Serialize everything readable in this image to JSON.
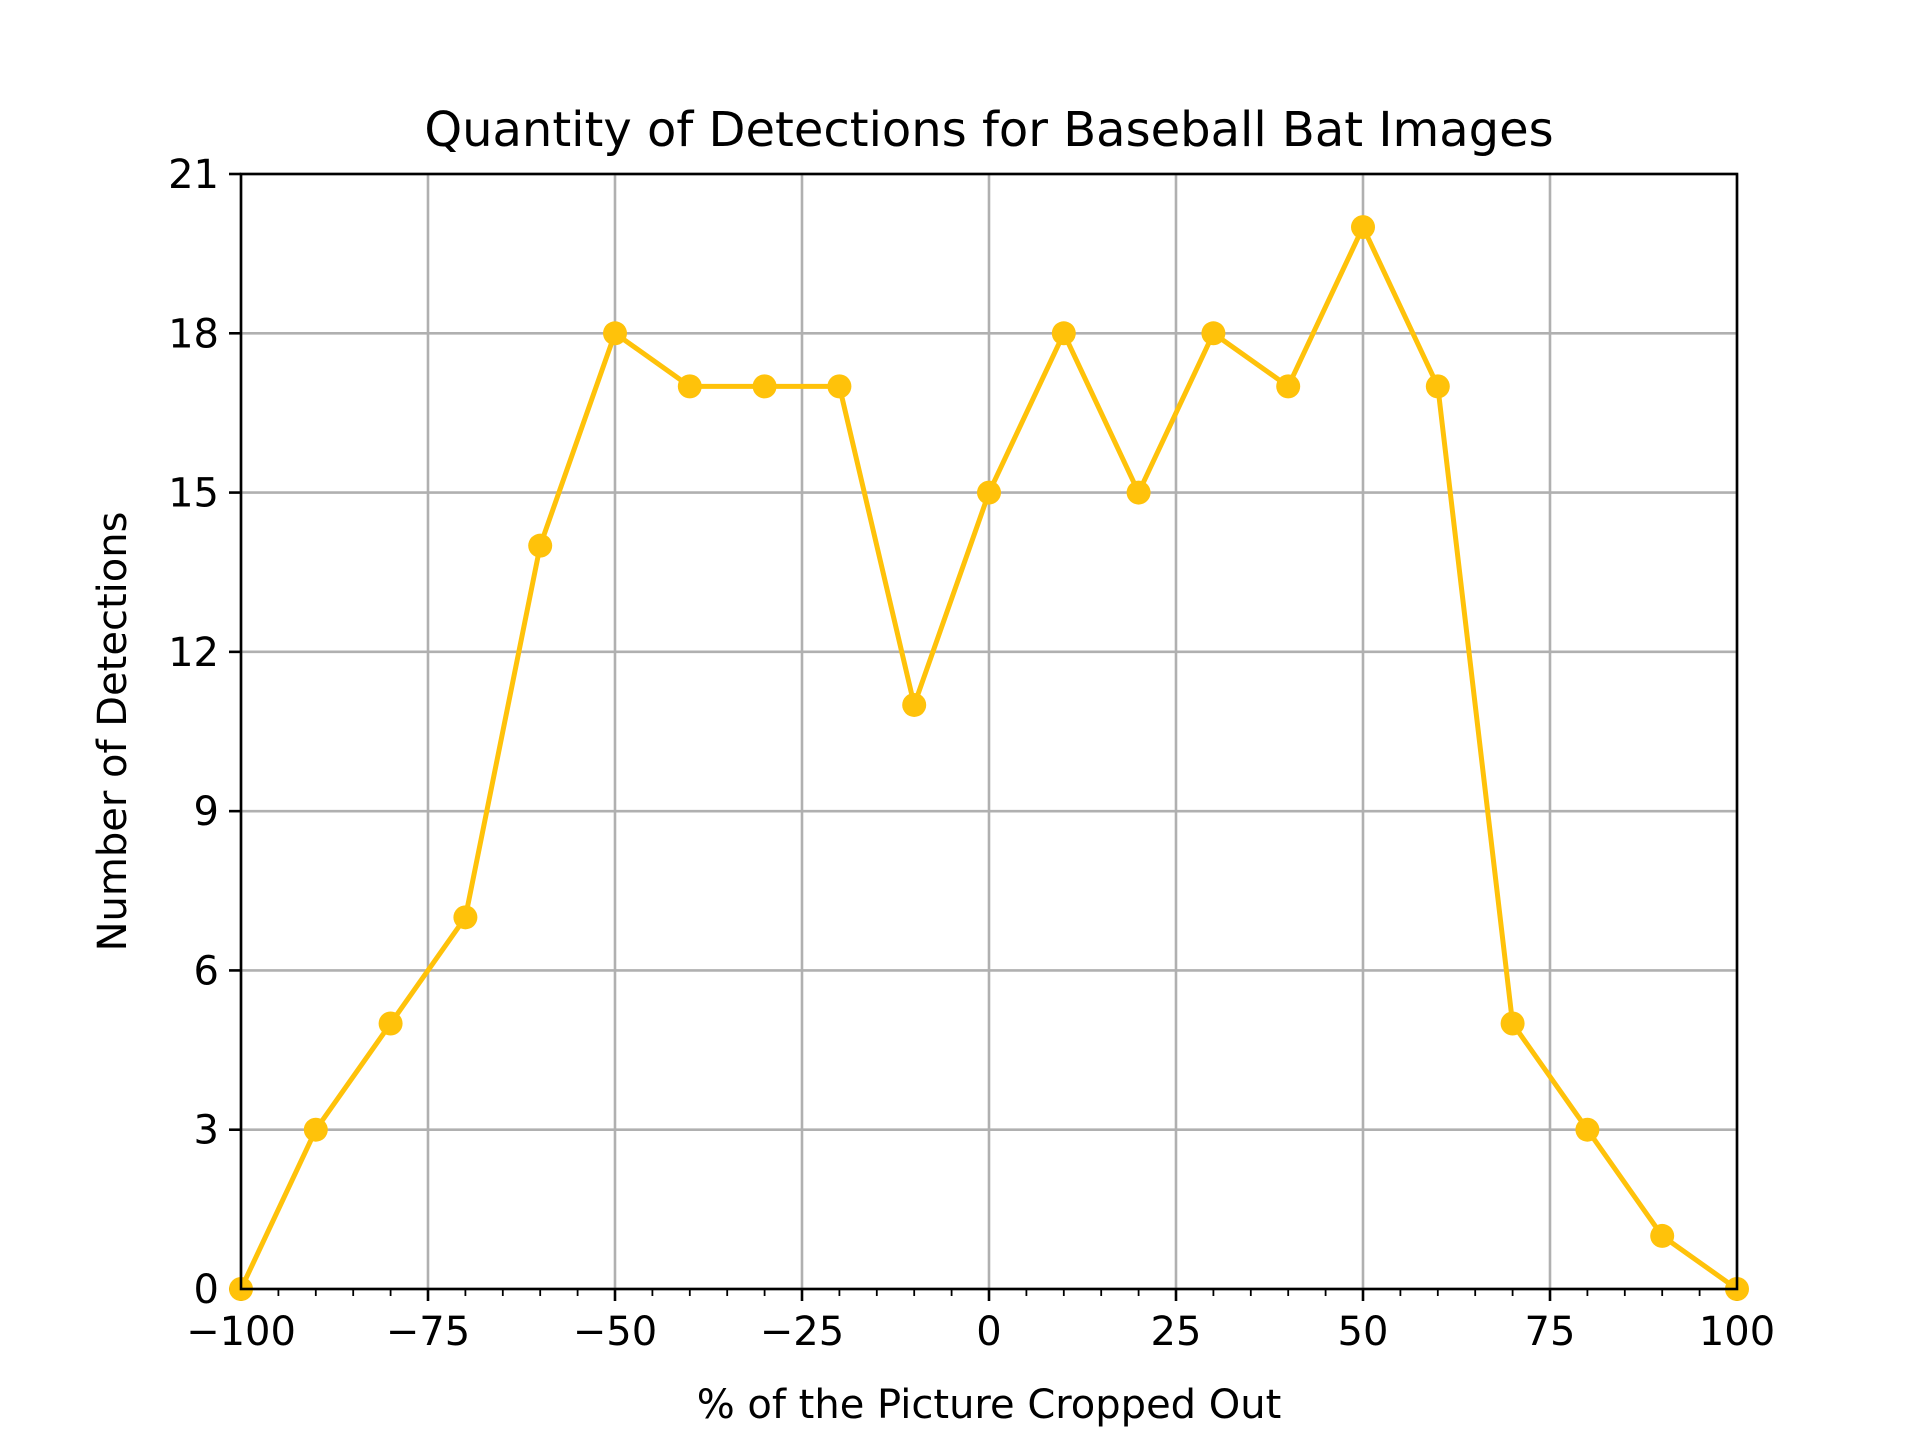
{
  "chart_data": {
    "type": "line",
    "title": "Quantity of Detections for Baseball Bat Images",
    "xlabel": "% of the Picture Cropped Out",
    "ylabel": "Number of Detections",
    "xlim": [
      -100,
      100
    ],
    "ylim": [
      0,
      21
    ],
    "xticks": [
      -100,
      -75,
      -50,
      -25,
      0,
      25,
      50,
      75,
      100
    ],
    "xtick_labels": [
      "−100",
      "−75",
      "−50",
      "−25",
      "0",
      "25",
      "50",
      "75",
      "100"
    ],
    "yticks": [
      0,
      3,
      6,
      9,
      12,
      15,
      18,
      21
    ],
    "ytick_labels": [
      "0",
      "3",
      "6",
      "9",
      "12",
      "15",
      "18",
      "21"
    ],
    "grid": true,
    "series": [
      {
        "color": "#FFC20A",
        "marker": "circle",
        "x": [
          -100,
          -90,
          -80,
          -70,
          -60,
          -50,
          -40,
          -30,
          -20,
          -10,
          0,
          10,
          20,
          30,
          40,
          50,
          60,
          70,
          80,
          90,
          100
        ],
        "values": [
          0,
          3,
          5,
          7,
          14,
          18,
          17,
          17,
          17,
          11,
          15,
          18,
          15,
          18,
          17,
          20,
          17,
          5,
          3,
          1,
          0
        ]
      }
    ]
  }
}
